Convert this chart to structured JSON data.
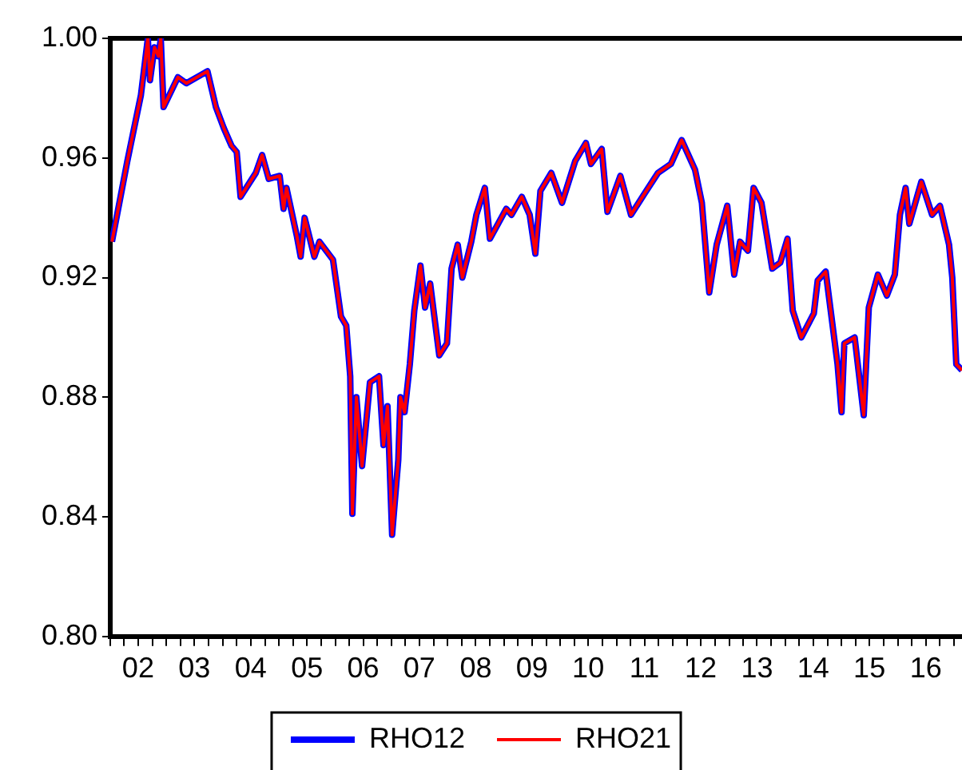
{
  "chart_data": {
    "type": "line",
    "legend": "bottom",
    "marker": "none",
    "line_style": "solid",
    "grid": false,
    "xlim": [
      "2002-01-01",
      "2017-02-21"
    ],
    "xticks": [
      {
        "value": "2002-01-01",
        "label": null
      },
      {
        "value": "2002-04-01",
        "label": null
      },
      {
        "value": "2002-07-01",
        "label": "02"
      },
      {
        "value": "2002-10-01",
        "label": null
      },
      {
        "value": "2003-01-01",
        "label": null
      },
      {
        "value": "2003-04-01",
        "label": null
      },
      {
        "value": "2003-07-01",
        "label": "03"
      },
      {
        "value": "2003-10-01",
        "label": null
      },
      {
        "value": "2004-01-01",
        "label": null
      },
      {
        "value": "2004-04-01",
        "label": null
      },
      {
        "value": "2004-07-01",
        "label": "04"
      },
      {
        "value": "2004-10-01",
        "label": null
      },
      {
        "value": "2005-01-01",
        "label": null
      },
      {
        "value": "2005-04-01",
        "label": null
      },
      {
        "value": "2005-07-01",
        "label": "05"
      },
      {
        "value": "2005-10-01",
        "label": null
      },
      {
        "value": "2006-01-01",
        "label": null
      },
      {
        "value": "2006-04-01",
        "label": null
      },
      {
        "value": "2006-07-01",
        "label": "06"
      },
      {
        "value": "2006-10-01",
        "label": null
      },
      {
        "value": "2007-01-01",
        "label": null
      },
      {
        "value": "2007-04-01",
        "label": null
      },
      {
        "value": "2007-07-01",
        "label": "07"
      },
      {
        "value": "2007-10-01",
        "label": null
      },
      {
        "value": "2008-01-01",
        "label": null
      },
      {
        "value": "2008-04-01",
        "label": null
      },
      {
        "value": "2008-07-01",
        "label": "08"
      },
      {
        "value": "2008-10-01",
        "label": null
      },
      {
        "value": "2009-01-01",
        "label": null
      },
      {
        "value": "2009-04-01",
        "label": null
      },
      {
        "value": "2009-07-01",
        "label": "09"
      },
      {
        "value": "2009-10-01",
        "label": null
      },
      {
        "value": "2010-01-01",
        "label": null
      },
      {
        "value": "2010-04-01",
        "label": null
      },
      {
        "value": "2010-07-01",
        "label": "10"
      },
      {
        "value": "2010-10-01",
        "label": null
      },
      {
        "value": "2011-01-01",
        "label": null
      },
      {
        "value": "2011-04-01",
        "label": null
      },
      {
        "value": "2011-07-01",
        "label": "11"
      },
      {
        "value": "2011-10-01",
        "label": null
      },
      {
        "value": "2012-01-01",
        "label": null
      },
      {
        "value": "2012-04-01",
        "label": null
      },
      {
        "value": "2012-07-01",
        "label": "12"
      },
      {
        "value": "2012-10-01",
        "label": null
      },
      {
        "value": "2013-01-01",
        "label": null
      },
      {
        "value": "2013-04-01",
        "label": null
      },
      {
        "value": "2013-07-01",
        "label": "13"
      },
      {
        "value": "2013-10-01",
        "label": null
      },
      {
        "value": "2014-01-01",
        "label": null
      },
      {
        "value": "2014-04-01",
        "label": null
      },
      {
        "value": "2014-07-01",
        "label": "14"
      },
      {
        "value": "2014-10-01",
        "label": null
      },
      {
        "value": "2015-01-01",
        "label": null
      },
      {
        "value": "2015-04-01",
        "label": null
      },
      {
        "value": "2015-07-01",
        "label": "15"
      },
      {
        "value": "2015-10-01",
        "label": null
      },
      {
        "value": "2016-01-01",
        "label": null
      },
      {
        "value": "2016-04-01",
        "label": null
      },
      {
        "value": "2016-07-01",
        "label": "16"
      },
      {
        "value": "2016-10-01",
        "label": null
      },
      {
        "value": "2017-01-01",
        "label": null
      }
    ],
    "ylim": [
      0.8,
      1.0
    ],
    "yticks": [
      {
        "value": 0.8,
        "label": "0.80"
      },
      {
        "value": 0.84,
        "label": "0.84"
      },
      {
        "value": 0.88,
        "label": "0.88"
      },
      {
        "value": 0.92,
        "label": "0.92"
      },
      {
        "value": 0.96,
        "label": "0.96"
      },
      {
        "value": 1.0,
        "label": "1.00"
      }
    ],
    "x": [
      "2002-01-12",
      "2002-04-22",
      "2002-07-19",
      "2002-09-02",
      "2002-09-16",
      "2002-10-15",
      "2002-11-10",
      "2002-11-25",
      "2002-12-13",
      "2003-03-16",
      "2003-05-10",
      "2003-09-24",
      "2003-11-18",
      "2004-01-08",
      "2004-02-28",
      "2004-04-01",
      "2004-04-26",
      "2004-08-03",
      "2004-09-13",
      "2004-10-26",
      "2005-01-05",
      "2005-01-30",
      "2005-02-18",
      "2005-04-26",
      "2005-05-21",
      "2005-06-16",
      "2005-08-18",
      "2005-09-20",
      "2005-12-17",
      "2006-02-07",
      "2006-03-13",
      "2006-04-08",
      "2006-04-22",
      "2006-05-18",
      "2006-06-24",
      "2006-08-14",
      "2006-10-12",
      "2006-11-10",
      "2006-12-06",
      "2007-01-05",
      "2007-02-14",
      "2007-02-28",
      "2007-03-27",
      "2007-04-30",
      "2007-05-29",
      "2007-07-08",
      "2007-08-07",
      "2007-09-09",
      "2007-11-07",
      "2007-12-27",
      "2008-01-26",
      "2008-03-06",
      "2008-04-05",
      "2008-06-02",
      "2008-07-05",
      "2008-08-29",
      "2008-10-01",
      "2009-01-15",
      "2009-02-18",
      "2009-04-26",
      "2009-06-16",
      "2009-07-23",
      "2009-08-25",
      "2009-11-03",
      "2010-01-12",
      "2010-04-08",
      "2010-06-16",
      "2010-07-19",
      "2010-09-27",
      "2010-11-03",
      "2011-01-26",
      "2011-04-05",
      "2011-07-01",
      "2011-09-27",
      "2011-12-20",
      "2012-02-28",
      "2012-05-25",
      "2012-07-08",
      "2012-08-25",
      "2012-10-12",
      "2012-12-20",
      "2013-02-03",
      "2013-03-13",
      "2013-05-03",
      "2013-06-09",
      "2013-07-30",
      "2013-10-08",
      "2013-11-29",
      "2014-01-15",
      "2014-02-18",
      "2014-04-15",
      "2014-07-05",
      "2014-07-30",
      "2014-09-20",
      "2014-12-06",
      "2015-01-01",
      "2015-01-19",
      "2015-03-27",
      "2015-05-25",
      "2015-06-27",
      "2015-08-25",
      "2015-10-22",
      "2015-12-13",
      "2016-01-15",
      "2016-02-21",
      "2016-03-16",
      "2016-06-02",
      "2016-08-11",
      "2016-10-01",
      "2016-11-29",
      "2016-12-20",
      "2017-01-15",
      "2017-02-21"
    ],
    "series": [
      {
        "name": "RHO12",
        "color": "#0000ff",
        "values": [
          0.932,
          0.959,
          0.981,
          1.0,
          0.986,
          0.997,
          0.994,
          1.0,
          0.977,
          0.987,
          0.985,
          0.989,
          0.977,
          0.97,
          0.964,
          0.962,
          0.947,
          0.955,
          0.961,
          0.953,
          0.954,
          0.943,
          0.95,
          0.934,
          0.927,
          0.94,
          0.927,
          0.932,
          0.926,
          0.907,
          0.904,
          0.887,
          0.841,
          0.88,
          0.857,
          0.885,
          0.887,
          0.864,
          0.877,
          0.834,
          0.859,
          0.88,
          0.875,
          0.891,
          0.909,
          0.924,
          0.91,
          0.918,
          0.894,
          0.898,
          0.923,
          0.931,
          0.92,
          0.932,
          0.941,
          0.95,
          0.933,
          0.943,
          0.941,
          0.947,
          0.941,
          0.928,
          0.949,
          0.955,
          0.945,
          0.959,
          0.965,
          0.958,
          0.963,
          0.942,
          0.954,
          0.941,
          0.948,
          0.955,
          0.958,
          0.966,
          0.956,
          0.945,
          0.915,
          0.931,
          0.944,
          0.921,
          0.932,
          0.929,
          0.95,
          0.945,
          0.923,
          0.925,
          0.933,
          0.909,
          0.9,
          0.908,
          0.919,
          0.922,
          0.891,
          0.875,
          0.898,
          0.9,
          0.874,
          0.91,
          0.921,
          0.914,
          0.921,
          0.941,
          0.95,
          0.938,
          0.952,
          0.941,
          0.944,
          0.931,
          0.92,
          0.891,
          0.889
        ]
      },
      {
        "name": "RHO21",
        "color": "#ff0000",
        "values": [
          0.932,
          0.959,
          0.981,
          1.0,
          0.986,
          0.997,
          0.994,
          1.0,
          0.977,
          0.987,
          0.985,
          0.989,
          0.977,
          0.97,
          0.964,
          0.962,
          0.947,
          0.955,
          0.961,
          0.953,
          0.954,
          0.943,
          0.95,
          0.934,
          0.927,
          0.94,
          0.927,
          0.932,
          0.926,
          0.907,
          0.904,
          0.887,
          0.841,
          0.88,
          0.857,
          0.885,
          0.887,
          0.864,
          0.877,
          0.834,
          0.859,
          0.88,
          0.875,
          0.891,
          0.909,
          0.924,
          0.91,
          0.918,
          0.894,
          0.898,
          0.923,
          0.931,
          0.92,
          0.932,
          0.941,
          0.95,
          0.933,
          0.943,
          0.941,
          0.947,
          0.941,
          0.928,
          0.949,
          0.955,
          0.945,
          0.959,
          0.965,
          0.958,
          0.963,
          0.942,
          0.954,
          0.941,
          0.948,
          0.955,
          0.958,
          0.966,
          0.956,
          0.945,
          0.915,
          0.931,
          0.944,
          0.921,
          0.932,
          0.929,
          0.95,
          0.945,
          0.923,
          0.925,
          0.933,
          0.909,
          0.9,
          0.908,
          0.919,
          0.922,
          0.891,
          0.875,
          0.898,
          0.9,
          0.874,
          0.91,
          0.921,
          0.914,
          0.921,
          0.941,
          0.95,
          0.938,
          0.952,
          0.941,
          0.944,
          0.931,
          0.92,
          0.891,
          0.889
        ]
      }
    ]
  }
}
